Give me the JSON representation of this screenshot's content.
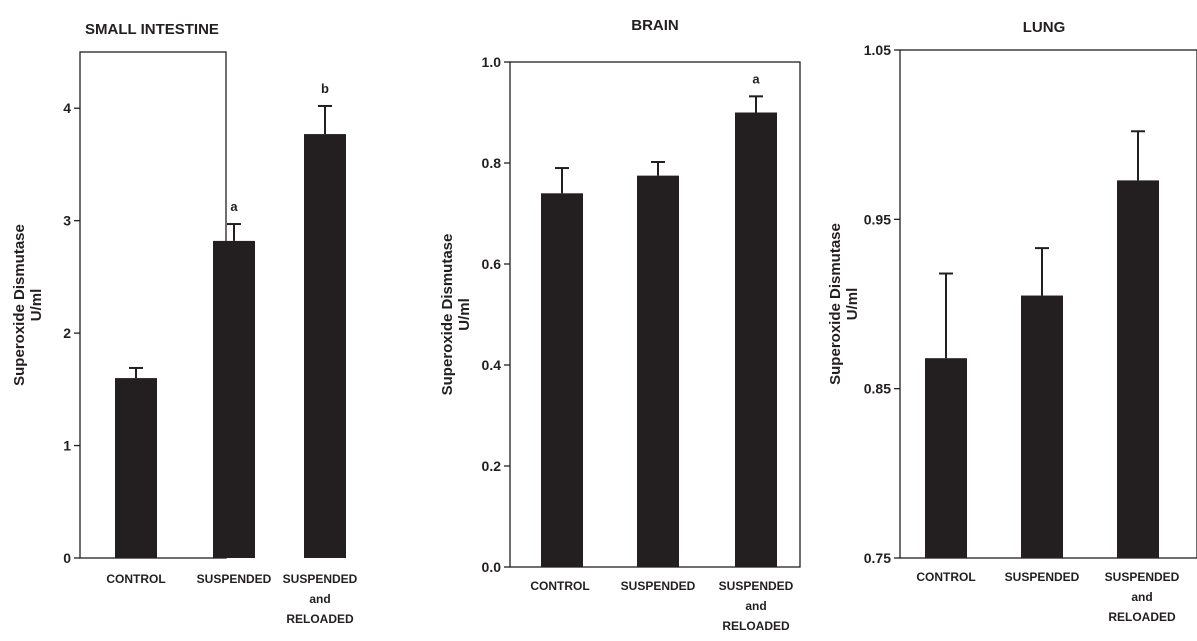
{
  "colors": {
    "bar": "#231f20",
    "axis": "#231f20",
    "text": "#231f20",
    "background": "#ffffff"
  },
  "chart_data": [
    {
      "type": "bar",
      "title": "SMALL INTESTINE",
      "ylabel": "Superoxide Dismutase U/ml",
      "ylabel_lines": [
        "Superoxide Dismutase",
        "U/ml"
      ],
      "ylim": [
        0,
        4.5
      ],
      "yticks": [
        0,
        1,
        2,
        3,
        4
      ],
      "ytick_labels": [
        "0",
        "1",
        "2",
        "3",
        "4"
      ],
      "categories": [
        "CONTROL",
        "SUSPENDED",
        "SUSPENDED and RELOADED"
      ],
      "category_lines": [
        [
          "CONTROL"
        ],
        [
          "SUSPENDED"
        ],
        [
          "SUSPENDED",
          "and",
          "RELOADED"
        ]
      ],
      "values": [
        1.6,
        2.82,
        3.77
      ],
      "errors": [
        0.09,
        0.15,
        0.25
      ],
      "annotations": [
        "",
        "a",
        "b"
      ]
    },
    {
      "type": "bar",
      "title": "BRAIN",
      "ylabel": "Superoxide Dismutase U/ml",
      "ylabel_lines": [
        "Superoxide Dismutase",
        "U/ml"
      ],
      "ylim": [
        0,
        1.0
      ],
      "yticks": [
        0,
        0.2,
        0.4,
        0.6,
        0.8,
        1.0
      ],
      "ytick_labels": [
        "0.0",
        "0.2",
        "0.4",
        "0.6",
        "0.8",
        "1.0"
      ],
      "categories": [
        "CONTROL",
        "SUSPENDED",
        "SUSPENDED and RELOADED"
      ],
      "category_lines": [
        [
          "CONTROL"
        ],
        [
          "SUSPENDED"
        ],
        [
          "SUSPENDED",
          "and",
          "RELOADED"
        ]
      ],
      "values": [
        0.74,
        0.775,
        0.9
      ],
      "errors": [
        0.05,
        0.027,
        0.032
      ],
      "annotations": [
        "",
        "",
        "a"
      ]
    },
    {
      "type": "bar",
      "title": "LUNG",
      "ylabel": "Superoxide Dismutase U/ml",
      "ylabel_lines": [
        "Superoxide Dismutase",
        "U/ml"
      ],
      "ylim": [
        0.75,
        1.05
      ],
      "yticks": [
        0.75,
        0.85,
        0.95,
        1.05
      ],
      "ytick_labels": [
        "0.75",
        "0.85",
        "0.95",
        "1.05"
      ],
      "categories": [
        "CONTROL",
        "SUSPENDED",
        "SUSPENDED and RELOADED"
      ],
      "category_lines": [
        [
          "CONTROL"
        ],
        [
          "SUSPENDED"
        ],
        [
          "SUSPENDED",
          "and",
          "RELOADED"
        ]
      ],
      "values": [
        0.868,
        0.905,
        0.973
      ],
      "errors": [
        0.05,
        0.028,
        0.029
      ],
      "annotations": [
        "",
        "",
        ""
      ]
    }
  ]
}
